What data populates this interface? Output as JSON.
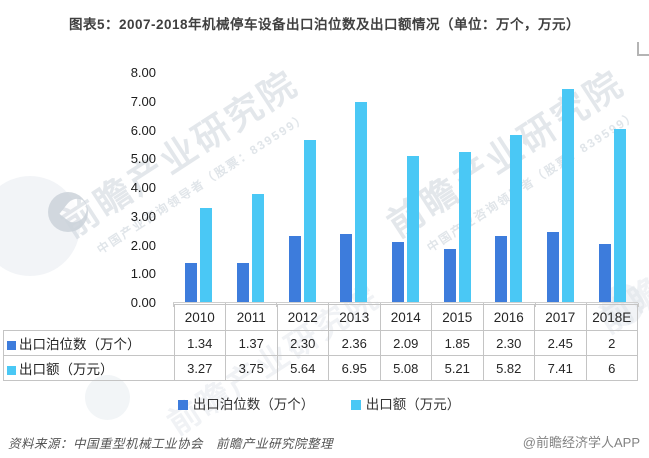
{
  "title": "图表5：2007-2018年机械停车设备出口泊位数及出口额情况（单位：万个，万元）",
  "chart_data": {
    "type": "bar",
    "title": "图表5：2007-2018年机械停车设备出口泊位数及出口额情况（单位：万个，万元）",
    "categories": [
      "2010",
      "2011",
      "2012",
      "2013",
      "2014",
      "2015",
      "2016",
      "2017",
      "2018E"
    ],
    "series": [
      {
        "name": "出口泊位数（万个）",
        "color": "#3D7CDC",
        "values": [
          1.34,
          1.37,
          2.3,
          2.36,
          2.09,
          1.85,
          2.3,
          2.45,
          2
        ]
      },
      {
        "name": "出口额（万元）",
        "color": "#4AC8F5",
        "values": [
          3.27,
          3.75,
          5.64,
          6.95,
          5.08,
          5.21,
          5.82,
          7.41,
          6
        ]
      }
    ],
    "xlabel": "",
    "ylabel": "",
    "ylim": [
      0,
      8
    ],
    "ytick_step": 1,
    "ytick_labels": [
      "0.00",
      "1.00",
      "2.00",
      "3.00",
      "4.00",
      "5.00",
      "6.00",
      "7.00",
      "8.00"
    ],
    "grid": false,
    "legend_position": "bottom"
  },
  "table": {
    "columns": [
      "2010",
      "2011",
      "2012",
      "2013",
      "2014",
      "2015",
      "2016",
      "2017",
      "2018E"
    ],
    "rows": [
      {
        "label": "出口泊位数（万个）",
        "values": [
          "1.34",
          "1.37",
          "2.30",
          "2.36",
          "2.09",
          "1.85",
          "2.30",
          "2.45",
          "2"
        ]
      },
      {
        "label": "出口额（万元）",
        "values": [
          "3.27",
          "3.75",
          "5.64",
          "6.95",
          "5.08",
          "5.21",
          "5.82",
          "7.41",
          "6"
        ]
      }
    ]
  },
  "footer": {
    "source": "资料来源：中国重型机械工业协会　前瞻产业研究院整理",
    "credit": "@前瞻经济学人APP"
  },
  "watermark": {
    "brand": "前瞻产业研究院",
    "tagline": "中国产业咨询领导者（股票：839599）"
  }
}
